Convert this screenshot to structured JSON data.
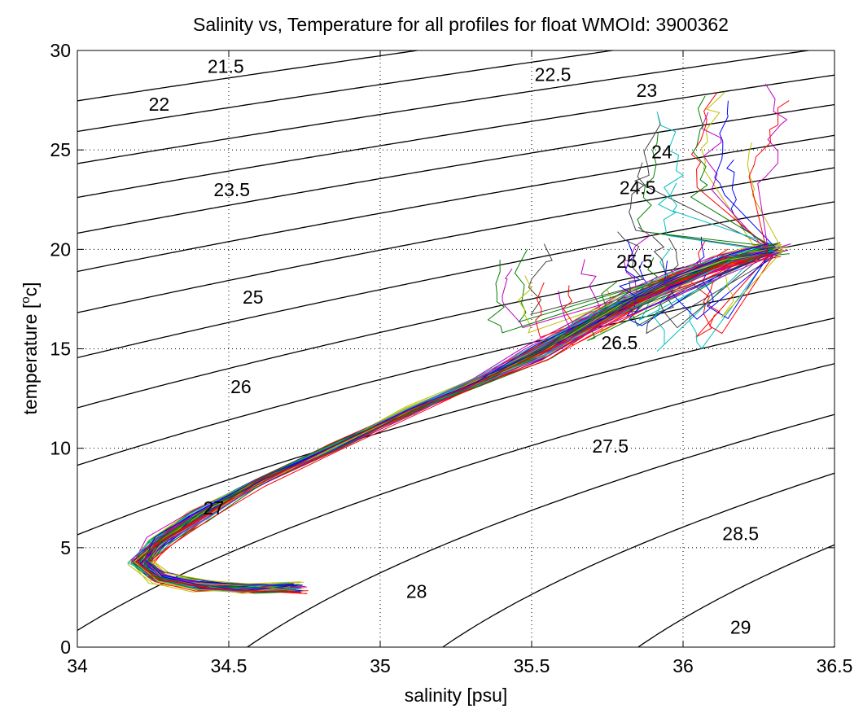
{
  "chart_data": {
    "type": "line",
    "title": "Salinity vs, Temperature for all profiles for float WMOId: 3900362",
    "xlabel": "salinity [psu]",
    "ylabel_main": "temperature [",
    "ylabel_sup": "o",
    "ylabel_end": "c]",
    "xlim": [
      34,
      36.5
    ],
    "ylim": [
      0,
      30
    ],
    "grid": true,
    "x_ticks": [
      {
        "value": 34,
        "label": "34"
      },
      {
        "value": 34.5,
        "label": "34.5"
      },
      {
        "value": 35,
        "label": "35"
      },
      {
        "value": 35.5,
        "label": "35.5"
      },
      {
        "value": 36,
        "label": "36"
      },
      {
        "value": 36.5,
        "label": "36.5"
      }
    ],
    "y_ticks": [
      {
        "value": 0,
        "label": "0"
      },
      {
        "value": 5,
        "label": "5"
      },
      {
        "value": 10,
        "label": "10"
      },
      {
        "value": 15,
        "label": "15"
      },
      {
        "value": 20,
        "label": "20"
      },
      {
        "value": 25,
        "label": "25"
      },
      {
        "value": 30,
        "label": "30"
      }
    ],
    "density_contours": {
      "levels": [
        21.5,
        22,
        22.5,
        23,
        23.5,
        24,
        24.5,
        25,
        25.5,
        26,
        26.5,
        27,
        27.5,
        28,
        28.5,
        29
      ],
      "labels": [
        {
          "text": "21.5",
          "s": 34.49,
          "t": 29.2
        },
        {
          "text": "22",
          "s": 34.27,
          "t": 27.3
        },
        {
          "text": "22.5",
          "s": 35.57,
          "t": 28.8
        },
        {
          "text": "23",
          "s": 35.88,
          "t": 28.0
        },
        {
          "text": "23.5",
          "s": 34.51,
          "t": 23.0
        },
        {
          "text": "24",
          "s": 35.93,
          "t": 24.9
        },
        {
          "text": "24.5",
          "s": 35.85,
          "t": 23.1
        },
        {
          "text": "25",
          "s": 34.58,
          "t": 17.6
        },
        {
          "text": "25.5",
          "s": 35.84,
          "t": 19.4
        },
        {
          "text": "26",
          "s": 34.54,
          "t": 13.1
        },
        {
          "text": "26.5",
          "s": 35.79,
          "t": 15.3
        },
        {
          "text": "27",
          "s": 34.45,
          "t": 7.0
        },
        {
          "text": "27.5",
          "s": 35.76,
          "t": 10.1
        },
        {
          "text": "28",
          "s": 35.12,
          "t": 2.8
        },
        {
          "text": "28.5",
          "s": 36.19,
          "t": 5.7
        },
        {
          "text": "29",
          "s": 36.19,
          "t": 1.0
        }
      ]
    },
    "profiles": {
      "count": 80,
      "colors": [
        "#0000ff",
        "#008000",
        "#ff0000",
        "#00bfbf",
        "#bf00bf",
        "#bfbf00",
        "#404040"
      ],
      "mean_path": [
        {
          "s": 34.72,
          "t": 3.0
        },
        {
          "s": 34.55,
          "t": 2.95
        },
        {
          "s": 34.4,
          "t": 3.1
        },
        {
          "s": 34.27,
          "t": 3.5
        },
        {
          "s": 34.21,
          "t": 4.3
        },
        {
          "s": 34.27,
          "t": 5.3
        },
        {
          "s": 34.4,
          "t": 6.6
        },
        {
          "s": 34.6,
          "t": 8.3
        },
        {
          "s": 34.85,
          "t": 10.1
        },
        {
          "s": 35.1,
          "t": 11.9
        },
        {
          "s": 35.32,
          "t": 13.3
        },
        {
          "s": 35.52,
          "t": 14.8
        },
        {
          "s": 35.7,
          "t": 16.4
        },
        {
          "s": 35.85,
          "t": 17.6
        },
        {
          "s": 36.0,
          "t": 18.6
        },
        {
          "s": 36.15,
          "t": 19.5
        },
        {
          "s": 36.3,
          "t": 20.0
        }
      ]
    }
  }
}
